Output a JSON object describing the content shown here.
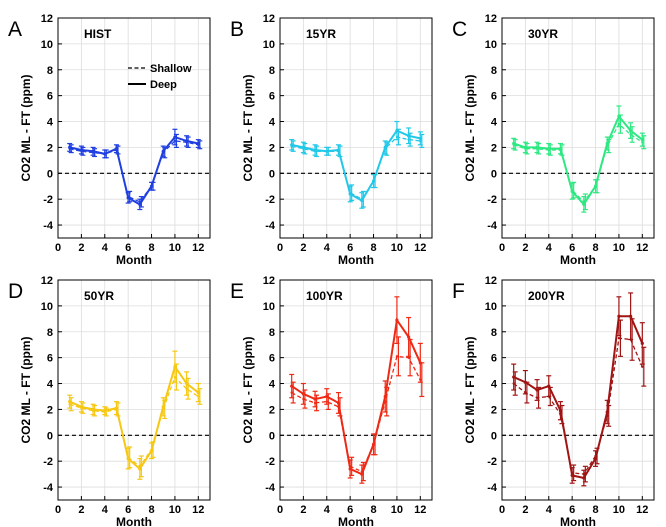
{
  "legend": {
    "shallow_label": "Shallow",
    "deep_label": "Deep"
  },
  "chart_data": [
    {
      "panel_letter": "A",
      "title": "HIST",
      "type": "line",
      "color": "#1f3fe0",
      "xlabel": "Month",
      "ylabel": "CO2 ML - FT (ppm)",
      "xlim": [
        0,
        13
      ],
      "ylim": [
        -5,
        12
      ],
      "xticks": [
        0,
        2,
        4,
        6,
        8,
        10,
        12
      ],
      "yticks": [
        -4,
        -2,
        0,
        2,
        4,
        6,
        8,
        10,
        12
      ],
      "grid": true,
      "legend_position": "top-right",
      "x": [
        1,
        2,
        3,
        4,
        5,
        6,
        7,
        8,
        9,
        10,
        11,
        12
      ],
      "series": [
        {
          "name": "Deep",
          "style": "solid",
          "values": [
            2.0,
            1.8,
            1.7,
            1.5,
            1.9,
            -1.9,
            -2.4,
            -1.0,
            1.7,
            2.8,
            2.5,
            2.3
          ],
          "errors": [
            0.3,
            0.3,
            0.3,
            0.3,
            0.3,
            0.4,
            0.4,
            0.3,
            0.4,
            0.6,
            0.4,
            0.3
          ]
        },
        {
          "name": "Shallow",
          "style": "dashed",
          "values": [
            1.9,
            1.7,
            1.6,
            1.5,
            1.8,
            -1.8,
            -2.2,
            -1.0,
            1.6,
            2.5,
            2.4,
            2.2
          ],
          "errors": [
            0.3,
            0.3,
            0.3,
            0.3,
            0.3,
            0.4,
            0.4,
            0.3,
            0.4,
            0.5,
            0.4,
            0.3
          ]
        }
      ]
    },
    {
      "panel_letter": "B",
      "title": "15YR",
      "type": "line",
      "color": "#22c8e8",
      "xlabel": "Month",
      "ylabel": "CO2 ML - FT (ppm)",
      "xlim": [
        0,
        13
      ],
      "ylim": [
        -5,
        12
      ],
      "xticks": [
        0,
        2,
        4,
        6,
        8,
        10,
        12
      ],
      "yticks": [
        -4,
        -2,
        0,
        2,
        4,
        6,
        8,
        10,
        12
      ],
      "grid": true,
      "x": [
        1,
        2,
        3,
        4,
        5,
        6,
        7,
        8,
        9,
        10,
        11,
        12
      ],
      "series": [
        {
          "name": "Deep",
          "style": "solid",
          "values": [
            2.2,
            2.0,
            1.8,
            1.7,
            1.8,
            -1.6,
            -2.1,
            -0.6,
            2.0,
            3.3,
            2.9,
            2.7
          ],
          "errors": [
            0.4,
            0.4,
            0.4,
            0.3,
            0.4,
            0.6,
            0.6,
            0.5,
            0.5,
            0.7,
            0.6,
            0.5
          ]
        },
        {
          "name": "Shallow",
          "style": "dashed",
          "values": [
            2.1,
            1.9,
            1.7,
            1.7,
            1.7,
            -1.5,
            -2.0,
            -0.6,
            1.9,
            2.8,
            2.6,
            2.5
          ],
          "errors": [
            0.4,
            0.4,
            0.4,
            0.3,
            0.4,
            0.6,
            0.6,
            0.5,
            0.5,
            0.6,
            0.5,
            0.5
          ]
        }
      ]
    },
    {
      "panel_letter": "C",
      "title": "30YR",
      "type": "line",
      "color": "#2ee882",
      "xlabel": "Month",
      "ylabel": "CO2 ML - FT (ppm)",
      "xlim": [
        0,
        13
      ],
      "ylim": [
        -5,
        12
      ],
      "xticks": [
        0,
        2,
        4,
        6,
        8,
        10,
        12
      ],
      "yticks": [
        -4,
        -2,
        0,
        2,
        4,
        6,
        8,
        10,
        12
      ],
      "grid": true,
      "x": [
        1,
        2,
        3,
        4,
        5,
        6,
        7,
        8,
        9,
        10,
        11,
        12
      ],
      "series": [
        {
          "name": "Deep",
          "style": "solid",
          "values": [
            2.3,
            2.0,
            2.0,
            1.9,
            1.9,
            -1.4,
            -2.4,
            -1.0,
            2.3,
            4.4,
            3.3,
            2.6
          ],
          "errors": [
            0.4,
            0.4,
            0.4,
            0.4,
            0.4,
            0.6,
            0.6,
            0.5,
            0.5,
            0.8,
            0.6,
            0.5
          ]
        },
        {
          "name": "Shallow",
          "style": "dashed",
          "values": [
            2.2,
            1.9,
            1.9,
            1.8,
            1.8,
            -1.3,
            -2.2,
            -1.0,
            2.1,
            3.8,
            3.0,
            2.4
          ],
          "errors": [
            0.4,
            0.4,
            0.4,
            0.4,
            0.4,
            0.6,
            0.6,
            0.5,
            0.5,
            0.7,
            0.6,
            0.5
          ]
        }
      ]
    },
    {
      "panel_letter": "D",
      "title": "50YR",
      "type": "line",
      "color": "#f6c814",
      "xlabel": "Month",
      "ylabel": "CO2 ML - FT (ppm)",
      "xlim": [
        0,
        13
      ],
      "ylim": [
        -5,
        12
      ],
      "xticks": [
        0,
        2,
        4,
        6,
        8,
        10,
        12
      ],
      "yticks": [
        -4,
        -2,
        0,
        2,
        4,
        6,
        8,
        10,
        12
      ],
      "grid": true,
      "x": [
        1,
        2,
        3,
        4,
        5,
        6,
        7,
        8,
        9,
        10,
        11,
        12
      ],
      "series": [
        {
          "name": "Deep",
          "style": "solid",
          "values": [
            2.6,
            2.2,
            2.0,
            1.9,
            2.1,
            -1.8,
            -2.6,
            -1.2,
            2.2,
            5.3,
            4.0,
            3.3
          ],
          "errors": [
            0.5,
            0.4,
            0.4,
            0.3,
            0.5,
            0.8,
            0.8,
            0.6,
            0.7,
            1.2,
            0.9,
            0.7
          ]
        },
        {
          "name": "Shallow",
          "style": "dashed",
          "values": [
            2.4,
            2.1,
            1.9,
            1.8,
            2.0,
            -1.7,
            -2.4,
            -1.1,
            2.0,
            4.5,
            3.6,
            3.0
          ],
          "errors": [
            0.5,
            0.4,
            0.4,
            0.3,
            0.5,
            0.8,
            0.8,
            0.6,
            0.7,
            1.0,
            0.8,
            0.6
          ]
        }
      ]
    },
    {
      "panel_letter": "E",
      "title": "100YR",
      "type": "line",
      "color": "#ee2a16",
      "xlabel": "Month",
      "ylabel": "CO2 ML - FT (ppm)",
      "xlim": [
        0,
        13
      ],
      "ylim": [
        -5,
        12
      ],
      "xticks": [
        0,
        2,
        4,
        6,
        8,
        10,
        12
      ],
      "yticks": [
        -4,
        -2,
        0,
        2,
        4,
        6,
        8,
        10,
        12
      ],
      "grid": true,
      "x": [
        1,
        2,
        3,
        4,
        5,
        6,
        7,
        8,
        9,
        10,
        11,
        12
      ],
      "series": [
        {
          "name": "Deep",
          "style": "solid",
          "values": [
            3.8,
            3.2,
            2.8,
            3.0,
            2.5,
            -2.6,
            -3.0,
            -0.7,
            3.0,
            8.9,
            7.6,
            5.6
          ],
          "errors": [
            0.9,
            0.8,
            0.6,
            0.6,
            0.8,
            0.7,
            0.7,
            0.8,
            1.2,
            1.8,
            1.5,
            1.5
          ]
        },
        {
          "name": "Shallow",
          "style": "dashed",
          "values": [
            3.3,
            2.8,
            2.5,
            2.6,
            2.2,
            -2.4,
            -2.8,
            -0.7,
            2.6,
            6.1,
            6.0,
            4.3
          ],
          "errors": [
            0.8,
            0.7,
            0.6,
            0.6,
            0.7,
            0.7,
            0.7,
            0.8,
            1.1,
            1.5,
            1.4,
            1.3
          ]
        }
      ]
    },
    {
      "panel_letter": "F",
      "title": "200YR",
      "type": "line",
      "color": "#a01414",
      "xlabel": "Month",
      "ylabel": "CO2 ML - FT (ppm)",
      "xlim": [
        0,
        13
      ],
      "ylim": [
        -5,
        12
      ],
      "xticks": [
        0,
        2,
        4,
        6,
        8,
        10,
        12
      ],
      "yticks": [
        -4,
        -2,
        0,
        2,
        4,
        6,
        8,
        10,
        12
      ],
      "grid": true,
      "x": [
        1,
        2,
        3,
        4,
        5,
        6,
        7,
        8,
        9,
        10,
        11,
        12
      ],
      "series": [
        {
          "name": "Deep",
          "style": "solid",
          "values": [
            4.5,
            4.1,
            3.5,
            3.8,
            1.9,
            -3.1,
            -3.3,
            -1.8,
            1.8,
            9.2,
            9.2,
            7.1
          ],
          "errors": [
            1.0,
            0.9,
            0.8,
            0.8,
            0.7,
            0.6,
            0.6,
            0.6,
            0.9,
            1.5,
            1.8,
            1.6
          ]
        },
        {
          "name": "Shallow",
          "style": "dashed",
          "values": [
            4.0,
            3.3,
            2.9,
            3.0,
            1.6,
            -2.9,
            -3.0,
            -1.6,
            1.5,
            7.5,
            7.4,
            5.3
          ],
          "errors": [
            0.9,
            0.8,
            0.8,
            0.7,
            0.7,
            0.6,
            0.6,
            0.6,
            0.8,
            1.4,
            1.6,
            1.5
          ]
        }
      ]
    }
  ]
}
